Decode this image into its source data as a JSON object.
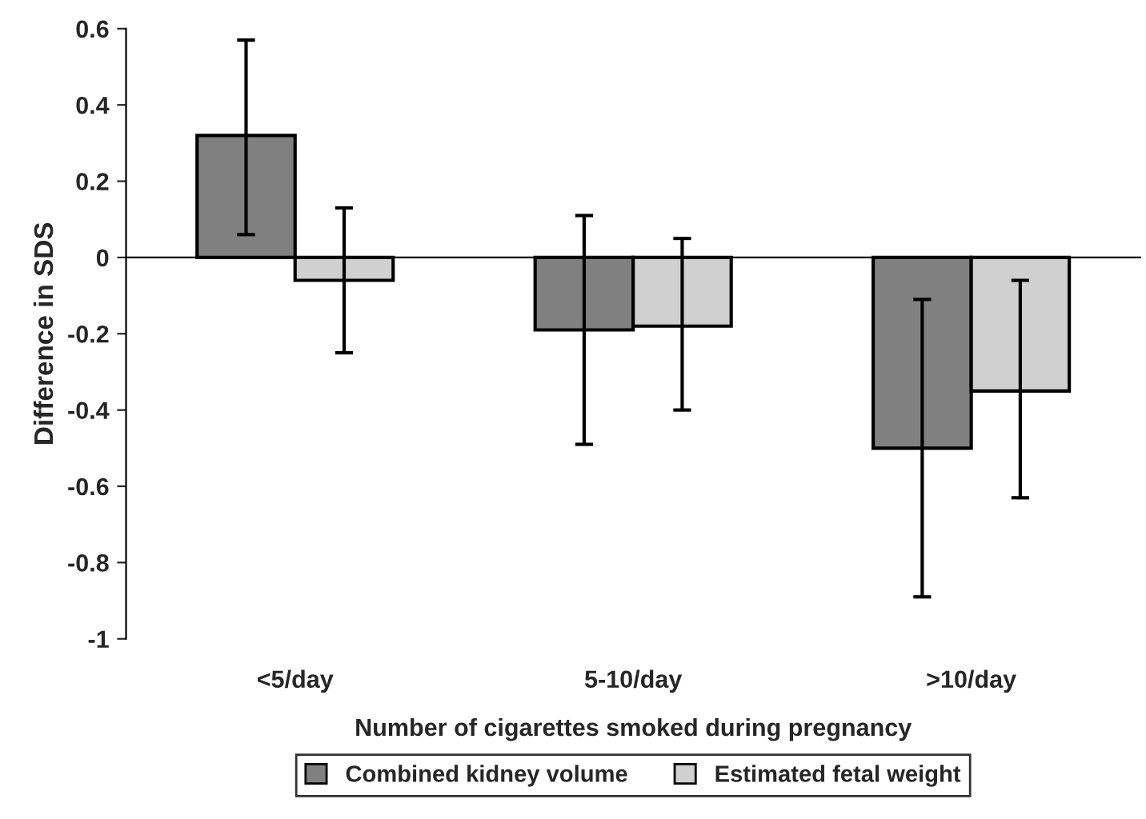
{
  "chart_data": {
    "type": "bar",
    "xlabel": "Number of cigarettes smoked during pregnancy",
    "ylabel": "Difference in SDS",
    "categories": [
      "<5/day",
      "5-10/day",
      ">10/day"
    ],
    "series": [
      {
        "name": "Combined kidney volume",
        "color": "#808080",
        "values": [
          0.32,
          -0.19,
          -0.5
        ],
        "errors": [
          [
            0.06,
            0.57
          ],
          [
            -0.49,
            0.11
          ],
          [
            -0.89,
            -0.11
          ]
        ]
      },
      {
        "name": "Estimated fetal weight",
        "color": "#d0d0d0",
        "values": [
          -0.06,
          -0.18,
          -0.35
        ],
        "errors": [
          [
            -0.25,
            0.13
          ],
          [
            -0.4,
            0.05
          ],
          [
            -0.63,
            -0.06
          ]
        ]
      }
    ],
    "ylim": [
      -1,
      0.6
    ],
    "yticks": [
      -1,
      -0.8,
      -0.6,
      -0.4,
      -0.2,
      0,
      0.2,
      0.4,
      0.6
    ],
    "legend": "bottom"
  }
}
